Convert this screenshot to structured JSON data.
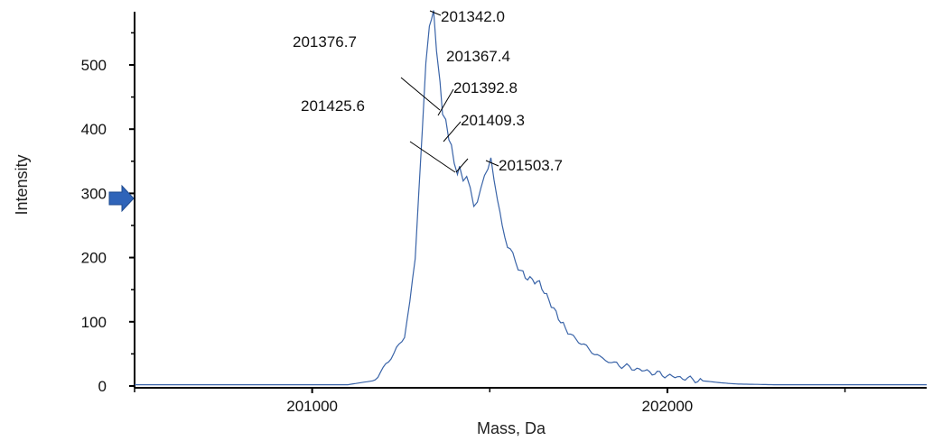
{
  "chart_data": {
    "type": "line",
    "xlabel": "Mass, Da",
    "ylabel": "Intensity",
    "xlim": [
      200500,
      202730
    ],
    "ylim": [
      0,
      585
    ],
    "x_ticks": [
      201000,
      202000
    ],
    "x_tick_labels": [
      "201000",
      "202000"
    ],
    "y_ticks": [
      0,
      100,
      200,
      300,
      400,
      500
    ],
    "y_tick_labels": [
      "0",
      "100",
      "200",
      "300",
      "400",
      "500"
    ],
    "grid": false,
    "series": [
      {
        "color": "#3a64a8",
        "x": [
          200500,
          201100,
          201170,
          201200,
          201230,
          201260,
          201275,
          201290,
          201300,
          201310,
          201320,
          201330,
          201342,
          201350,
          201360,
          201367,
          201376,
          201385,
          201392,
          201400,
          201409,
          201415,
          201425,
          201435,
          201445,
          201455,
          201465,
          201475,
          201485,
          201495,
          201503,
          201512,
          201522,
          201535,
          201550,
          201565,
          201580,
          201600,
          201620,
          201640,
          201660,
          201680,
          201700,
          201720,
          201750,
          201780,
          201810,
          201850,
          201900,
          201950,
          202000,
          202050,
          202100,
          202150,
          202200,
          202300,
          202500,
          202730
        ],
        "y": [
          2,
          2,
          8,
          25,
          50,
          80,
          130,
          200,
          300,
          400,
          500,
          560,
          585,
          520,
          470,
          420,
          415,
          385,
          380,
          350,
          330,
          340,
          315,
          325,
          305,
          280,
          285,
          310,
          330,
          340,
          355,
          320,
          290,
          250,
          215,
          205,
          185,
          170,
          165,
          160,
          140,
          120,
          100,
          85,
          70,
          55,
          45,
          35,
          28,
          22,
          16,
          12,
          8,
          5,
          3,
          2,
          2,
          2
        ]
      }
    ],
    "annotations": [
      {
        "text": "201342.0",
        "x": 201342,
        "y": 585
      },
      {
        "text": "201376.7",
        "x": 201376.7,
        "y": 430
      },
      {
        "text": "201367.4",
        "x": 201367.4,
        "y": 420
      },
      {
        "text": "201392.8",
        "x": 201392.8,
        "y": 385
      },
      {
        "text": "201409.3",
        "x": 201409.3,
        "y": 355
      },
      {
        "text": "201425.6",
        "x": 201425.6,
        "y": 330
      },
      {
        "text": "201503.7",
        "x": 201503.7,
        "y": 355
      }
    ]
  }
}
